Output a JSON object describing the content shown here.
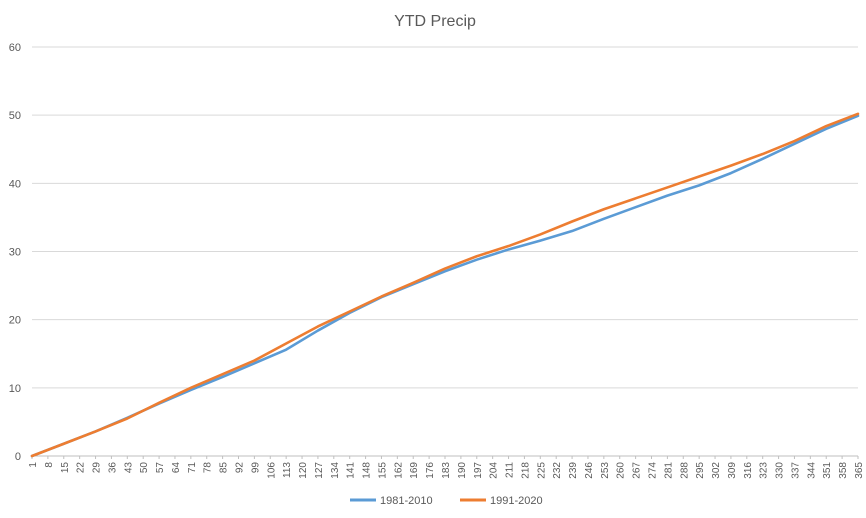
{
  "chart_data": {
    "type": "line",
    "title": "YTD Precip",
    "xlabel": "",
    "ylabel": "",
    "ylim": [
      0,
      60
    ],
    "y_ticks": [
      0,
      10,
      20,
      30,
      40,
      50,
      60
    ],
    "xlim": [
      1,
      365
    ],
    "x_tick_labels": [
      1,
      8,
      15,
      22,
      29,
      36,
      43,
      50,
      57,
      64,
      71,
      78,
      85,
      92,
      99,
      106,
      113,
      120,
      127,
      134,
      141,
      148,
      155,
      162,
      169,
      176,
      183,
      190,
      197,
      204,
      211,
      218,
      225,
      232,
      239,
      246,
      253,
      260,
      267,
      274,
      281,
      288,
      295,
      302,
      309,
      316,
      323,
      330,
      337,
      344,
      351,
      358,
      365
    ],
    "grid": true,
    "legend_position": "bottom",
    "series": [
      {
        "name": "1981-2010",
        "color": "#5b9bd5",
        "x": [
          1,
          15,
          29,
          43,
          57,
          71,
          85,
          99,
          113,
          127,
          141,
          155,
          169,
          183,
          197,
          211,
          225,
          239,
          253,
          267,
          281,
          295,
          309,
          323,
          337,
          351,
          365
        ],
        "values": [
          0,
          1.8,
          3.6,
          5.6,
          7.7,
          9.7,
          11.6,
          13.6,
          15.6,
          18.4,
          21.0,
          23.3,
          25.2,
          27.1,
          28.8,
          30.3,
          31.6,
          33.0,
          34.8,
          36.5,
          38.2,
          39.7,
          41.5,
          43.6,
          45.8,
          48.0,
          49.9
        ]
      },
      {
        "name": "1991-2020",
        "color": "#ed7d31",
        "x": [
          1,
          15,
          29,
          43,
          57,
          71,
          85,
          99,
          113,
          127,
          141,
          155,
          169,
          183,
          197,
          211,
          225,
          239,
          253,
          267,
          281,
          295,
          309,
          323,
          337,
          351,
          365
        ],
        "values": [
          0,
          1.8,
          3.6,
          5.5,
          7.8,
          10.0,
          12.0,
          14.0,
          16.5,
          19.0,
          21.2,
          23.4,
          25.4,
          27.5,
          29.3,
          30.8,
          32.5,
          34.4,
          36.2,
          37.8,
          39.4,
          41.0,
          42.6,
          44.3,
          46.2,
          48.4,
          50.2
        ]
      }
    ]
  }
}
